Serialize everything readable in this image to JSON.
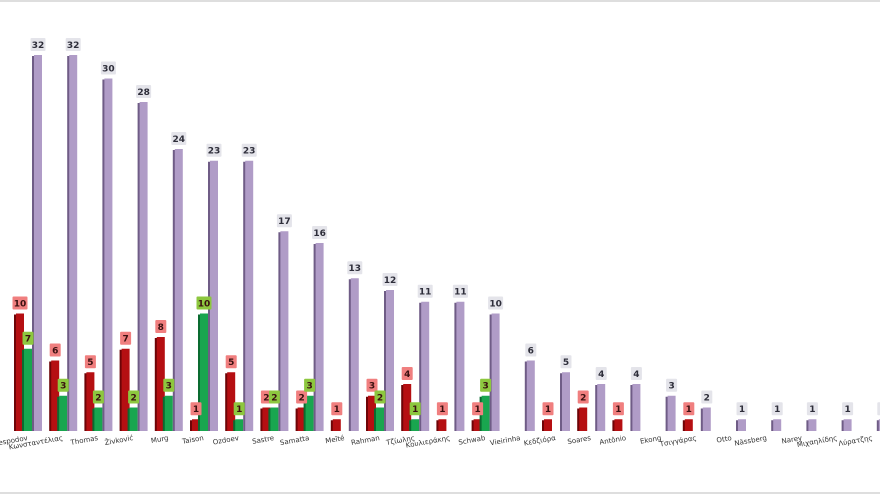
{
  "chart_data": {
    "type": "bar",
    "categories": [
      "Despodov",
      "Κωνσταντέλιας",
      "Thomas",
      "Živković",
      "Murg",
      "Taison",
      "Ozdoev",
      "Sastre",
      "Samatta",
      "Meïté",
      "Rahman",
      "Τζίωλης",
      "Κουλιεράκης",
      "Schwab",
      "Vieirinha",
      "Κεδζιόρα",
      "Soares",
      "Antônio",
      "Ekong",
      "Τσιγγάρας",
      "Otto",
      "Nässberg",
      "Narey",
      "Μιχαηλίδης",
      "Λύρατζης"
    ],
    "series": [
      {
        "values": [
          10,
          6,
          5,
          7,
          8,
          1,
          5,
          2,
          2,
          1,
          3,
          4,
          1,
          1,
          null,
          1,
          2,
          1,
          null,
          1,
          null,
          null,
          null,
          null,
          null
        ],
        "color": "#b50f12",
        "label_bg": "#f07f7f"
      },
      {
        "values": [
          7,
          3,
          2,
          2,
          3,
          10,
          1,
          2,
          3,
          null,
          2,
          1,
          null,
          3,
          null,
          null,
          null,
          null,
          null,
          null,
          null,
          null,
          null,
          null,
          null
        ],
        "color": "#19a64f",
        "label_bg": "#8dc73f"
      },
      {
        "values": [
          32,
          32,
          30,
          28,
          24,
          23,
          23,
          17,
          16,
          13,
          12,
          11,
          11,
          10,
          6,
          5,
          4,
          4,
          3,
          2,
          1,
          1,
          1,
          1,
          1
        ],
        "color": "#b09cc7",
        "label_bg": "#e4e4ea"
      }
    ],
    "ylim": [
      0,
      33
    ],
    "grid": false,
    "legend": "none"
  }
}
